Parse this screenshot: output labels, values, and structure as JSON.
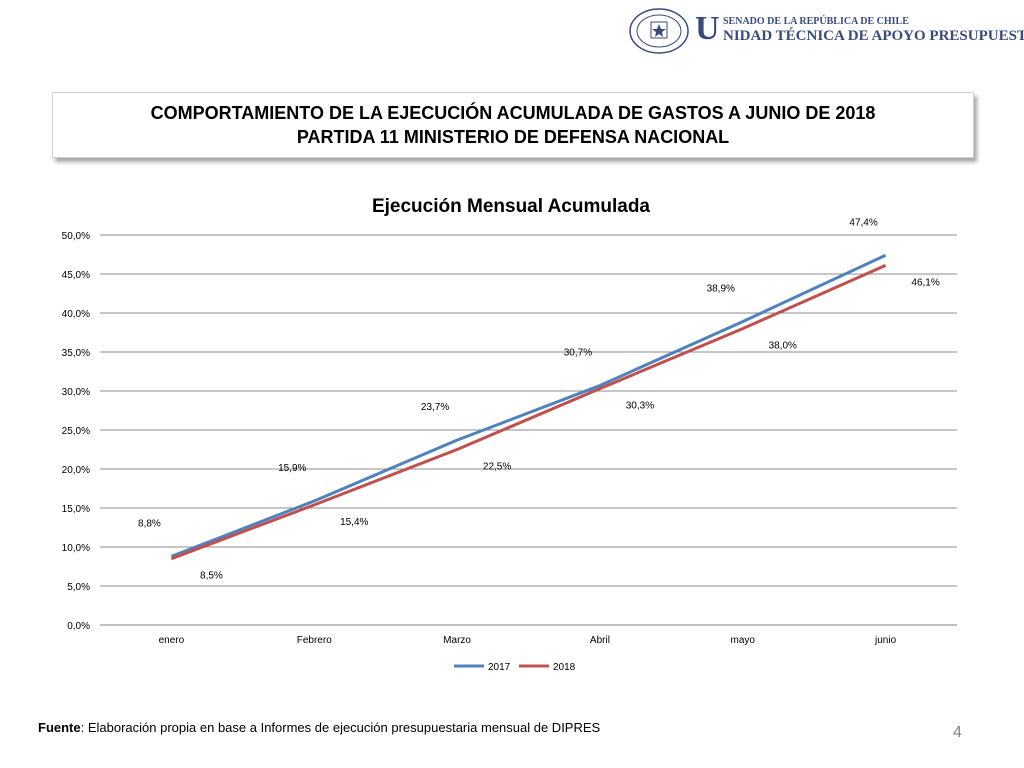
{
  "header": {
    "seal_text_top": "REPUBLICA DE CHILE",
    "seal_text_bottom": "SENADO",
    "brand_initial": "U",
    "brand_line1": "SENADO DE LA REPÚBLICA DE CHILE",
    "brand_line2": "NIDAD TÉCNICA DE APOYO PRESUPUESTARIO"
  },
  "title": {
    "line1": "COMPORTAMIENTO DE LA EJECUCIÓN ACUMULADA DE GASTOS A JUNIO DE 2018",
    "line2": "PARTIDA 11 MINISTERIO DE DEFENSA NACIONAL"
  },
  "chart_data": {
    "type": "line",
    "title": "Ejecución Mensual Acumulada",
    "categories": [
      "enero",
      "Febrero",
      "Marzo",
      "Abril",
      "mayo",
      "junio"
    ],
    "series": [
      {
        "name": "2017",
        "color": "#4f81bd",
        "values": [
          8.8,
          15.9,
          23.7,
          30.7,
          38.9,
          47.4
        ],
        "labels": [
          "8,8%",
          "15,9%",
          "23,7%",
          "30,7%",
          "38,9%",
          "47,4%"
        ]
      },
      {
        "name": "2018",
        "color": "#c0504d",
        "values": [
          8.5,
          15.4,
          22.5,
          30.3,
          38.0,
          46.1
        ],
        "labels": [
          "8,5%",
          "15,4%",
          "22,5%",
          "30,3%",
          "38,0%",
          "46,1%"
        ]
      }
    ],
    "ylim": [
      0,
      50
    ],
    "yticks": [
      "0,0%",
      "5,0%",
      "10,0%",
      "15,0%",
      "20,0%",
      "25,0%",
      "30,0%",
      "35,0%",
      "40,0%",
      "45,0%",
      "50,0%"
    ],
    "grid": true,
    "legend": "bottom"
  },
  "footer": {
    "source_label": "Fuente",
    "source_text": ": Elaboración propia en base  a Informes de ejecución presupuestaria mensual de DIPRES",
    "page_number": "4"
  }
}
